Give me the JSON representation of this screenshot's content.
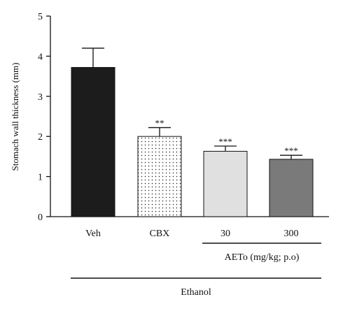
{
  "chart_data": {
    "type": "bar",
    "ylabel": "Stomach wall thickness (mm)",
    "ylim": [
      0,
      5
    ],
    "yticks": [
      0,
      1,
      2,
      3,
      4,
      5
    ],
    "categories": [
      "Veh",
      "CBX",
      "30",
      "300"
    ],
    "values": [
      3.72,
      2.0,
      1.63,
      1.43
    ],
    "errors": [
      0.48,
      0.22,
      0.13,
      0.1
    ],
    "significance": [
      "",
      "**",
      "***",
      "***"
    ],
    "bar_styles": [
      {
        "fill": "#1c1c1c",
        "pattern": "solid"
      },
      {
        "fill": "#ffffff",
        "pattern": "dots"
      },
      {
        "fill": "#e0e0e0",
        "pattern": "solid"
      },
      {
        "fill": "#7a7a7a",
        "pattern": "solid"
      }
    ],
    "group_labels": [
      {
        "label": "AETo (mg/kg; p.o)",
        "from": 2,
        "to": 3
      },
      {
        "label": "Ethanol",
        "from": 0,
        "to": 3
      }
    ]
  }
}
